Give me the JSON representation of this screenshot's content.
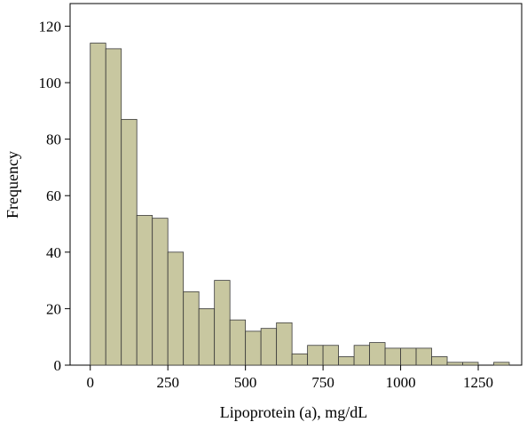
{
  "chart_data": {
    "type": "bar",
    "title": "",
    "xlabel": "Lipoprotein (a), mg/dL",
    "ylabel": "Frequency",
    "xlim": [
      -65,
      1390
    ],
    "ylim": [
      0,
      128
    ],
    "xticks": [
      0,
      250,
      500,
      750,
      1000,
      1250
    ],
    "yticks": [
      0,
      20,
      40,
      60,
      80,
      100,
      120
    ],
    "xtick_labels": [
      "0",
      "250",
      "500",
      "750",
      "1000",
      "1250"
    ],
    "ytick_labels": [
      "0",
      "20",
      "40",
      "60",
      "80",
      "100",
      "120"
    ],
    "bin_width": 50,
    "bins": [
      {
        "start": 0,
        "end": 50,
        "count": 114
      },
      {
        "start": 50,
        "end": 100,
        "count": 112
      },
      {
        "start": 100,
        "end": 150,
        "count": 87
      },
      {
        "start": 150,
        "end": 200,
        "count": 53
      },
      {
        "start": 200,
        "end": 250,
        "count": 52
      },
      {
        "start": 250,
        "end": 300,
        "count": 40
      },
      {
        "start": 300,
        "end": 350,
        "count": 26
      },
      {
        "start": 350,
        "end": 400,
        "count": 20
      },
      {
        "start": 400,
        "end": 450,
        "count": 30
      },
      {
        "start": 450,
        "end": 500,
        "count": 16
      },
      {
        "start": 500,
        "end": 550,
        "count": 12
      },
      {
        "start": 550,
        "end": 600,
        "count": 13
      },
      {
        "start": 600,
        "end": 650,
        "count": 15
      },
      {
        "start": 650,
        "end": 700,
        "count": 4
      },
      {
        "start": 700,
        "end": 750,
        "count": 7
      },
      {
        "start": 750,
        "end": 800,
        "count": 7
      },
      {
        "start": 800,
        "end": 850,
        "count": 3
      },
      {
        "start": 850,
        "end": 900,
        "count": 7
      },
      {
        "start": 900,
        "end": 950,
        "count": 8
      },
      {
        "start": 950,
        "end": 1000,
        "count": 6
      },
      {
        "start": 1000,
        "end": 1050,
        "count": 6
      },
      {
        "start": 1050,
        "end": 1100,
        "count": 6
      },
      {
        "start": 1100,
        "end": 1150,
        "count": 3
      },
      {
        "start": 1150,
        "end": 1200,
        "count": 1
      },
      {
        "start": 1200,
        "end": 1250,
        "count": 1
      },
      {
        "start": 1250,
        "end": 1300,
        "count": 0
      },
      {
        "start": 1300,
        "end": 1350,
        "count": 1
      }
    ],
    "grid": false,
    "legend": "none",
    "colors": {
      "bar_fill": "#c8c7a0",
      "bar_stroke": "#3a3a3a",
      "axis": "#000000",
      "background": "#ffffff"
    }
  }
}
